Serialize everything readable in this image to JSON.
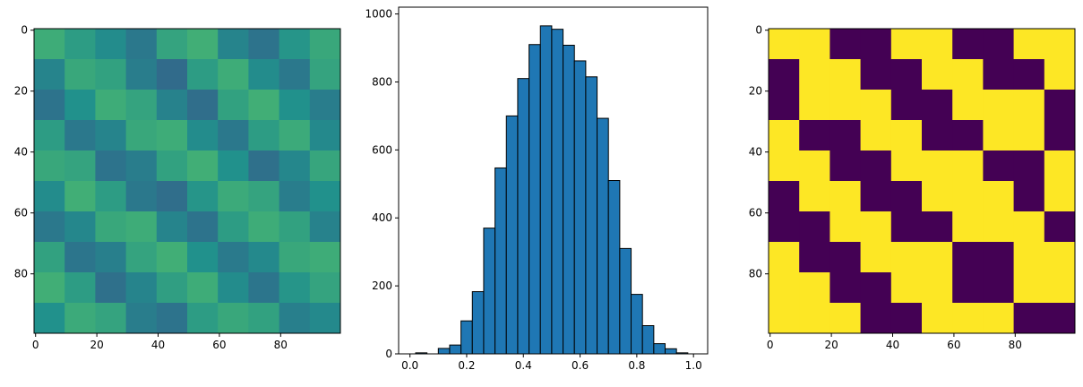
{
  "chart_data": [
    {
      "type": "image",
      "cmap": "viridis",
      "clim": [
        0,
        1
      ],
      "xlim": [
        -0.5,
        99.5
      ],
      "ylim": [
        99.5,
        -0.5
      ],
      "xticks": [
        0,
        20,
        40,
        60,
        80
      ],
      "yticks": [
        0,
        20,
        40,
        60,
        80
      ],
      "values": [
        [
          0.62,
          0.55,
          0.48,
          0.4,
          0.58,
          0.63,
          0.45,
          0.38,
          0.52,
          0.6
        ],
        [
          0.45,
          0.6,
          0.57,
          0.42,
          0.35,
          0.55,
          0.62,
          0.48,
          0.4,
          0.58
        ],
        [
          0.38,
          0.5,
          0.62,
          0.58,
          0.44,
          0.36,
          0.57,
          0.63,
          0.5,
          0.42
        ],
        [
          0.55,
          0.4,
          0.45,
          0.6,
          0.62,
          0.48,
          0.4,
          0.55,
          0.61,
          0.47
        ],
        [
          0.6,
          0.58,
          0.38,
          0.42,
          0.57,
          0.63,
          0.5,
          0.37,
          0.46,
          0.59
        ],
        [
          0.48,
          0.63,
          0.55,
          0.4,
          0.36,
          0.52,
          0.61,
          0.58,
          0.42,
          0.5
        ],
        [
          0.4,
          0.46,
          0.6,
          0.62,
          0.45,
          0.38,
          0.55,
          0.62,
          0.57,
          0.44
        ],
        [
          0.57,
          0.39,
          0.43,
          0.58,
          0.63,
          0.5,
          0.41,
          0.47,
          0.6,
          0.62
        ],
        [
          0.63,
          0.55,
          0.37,
          0.45,
          0.56,
          0.62,
          0.48,
          0.39,
          0.52,
          0.58
        ],
        [
          0.5,
          0.61,
          0.58,
          0.42,
          0.38,
          0.55,
          0.6,
          0.57,
          0.43,
          0.47
        ]
      ]
    },
    {
      "type": "histogram",
      "color": "#1f77b4",
      "edgecolor": "#000000",
      "bins": [
        0.02,
        0.06,
        0.1,
        0.14,
        0.18,
        0.22,
        0.26,
        0.3,
        0.34,
        0.38,
        0.42,
        0.46,
        0.5,
        0.54,
        0.58,
        0.62,
        0.66,
        0.7,
        0.74,
        0.78,
        0.82,
        0.86,
        0.9,
        0.94,
        0.98
      ],
      "values": [
        3,
        0,
        16,
        26,
        97,
        183,
        370,
        547,
        700,
        810,
        910,
        965,
        955,
        908,
        862,
        815,
        693,
        510,
        310,
        175,
        83,
        30,
        15,
        3
      ],
      "xlim": [
        -0.04,
        1.05
      ],
      "ylim": [
        0,
        1020
      ],
      "xticks": [
        {
          "value": 0,
          "label": "0.0"
        },
        0.2,
        0.4,
        0.6,
        0.8,
        {
          "value": 1,
          "label": "1.0"
        }
      ],
      "yticks": [
        0,
        200,
        400,
        600,
        800,
        1000
      ]
    },
    {
      "type": "image",
      "cmap": "viridis",
      "clim": [
        0,
        1
      ],
      "xlim": [
        -0.5,
        99.5
      ],
      "ylim": [
        99.5,
        -0.5
      ],
      "xticks": [
        0,
        20,
        40,
        60,
        80
      ],
      "yticks": [
        0,
        20,
        40,
        60,
        80
      ],
      "values": [
        [
          1,
          1,
          0,
          0,
          1,
          1,
          0,
          0,
          1,
          1
        ],
        [
          0,
          1,
          1,
          0,
          0,
          1,
          1,
          0,
          0,
          1
        ],
        [
          0,
          1,
          1,
          1,
          0,
          0,
          1,
          1,
          1,
          0
        ],
        [
          1,
          0,
          0,
          1,
          1,
          0,
          0,
          1,
          1,
          0
        ],
        [
          1,
          1,
          0,
          0,
          1,
          1,
          1,
          0,
          0,
          1
        ],
        [
          0,
          1,
          1,
          0,
          0,
          1,
          1,
          1,
          0,
          1
        ],
        [
          0,
          0,
          1,
          1,
          0,
          0,
          1,
          1,
          1,
          0
        ],
        [
          1,
          0,
          0,
          1,
          1,
          1,
          0,
          0,
          1,
          1
        ],
        [
          1,
          1,
          0,
          0,
          1,
          1,
          0,
          0,
          1,
          1
        ],
        [
          1,
          1,
          1,
          0,
          0,
          1,
          1,
          1,
          0,
          0
        ]
      ]
    }
  ]
}
